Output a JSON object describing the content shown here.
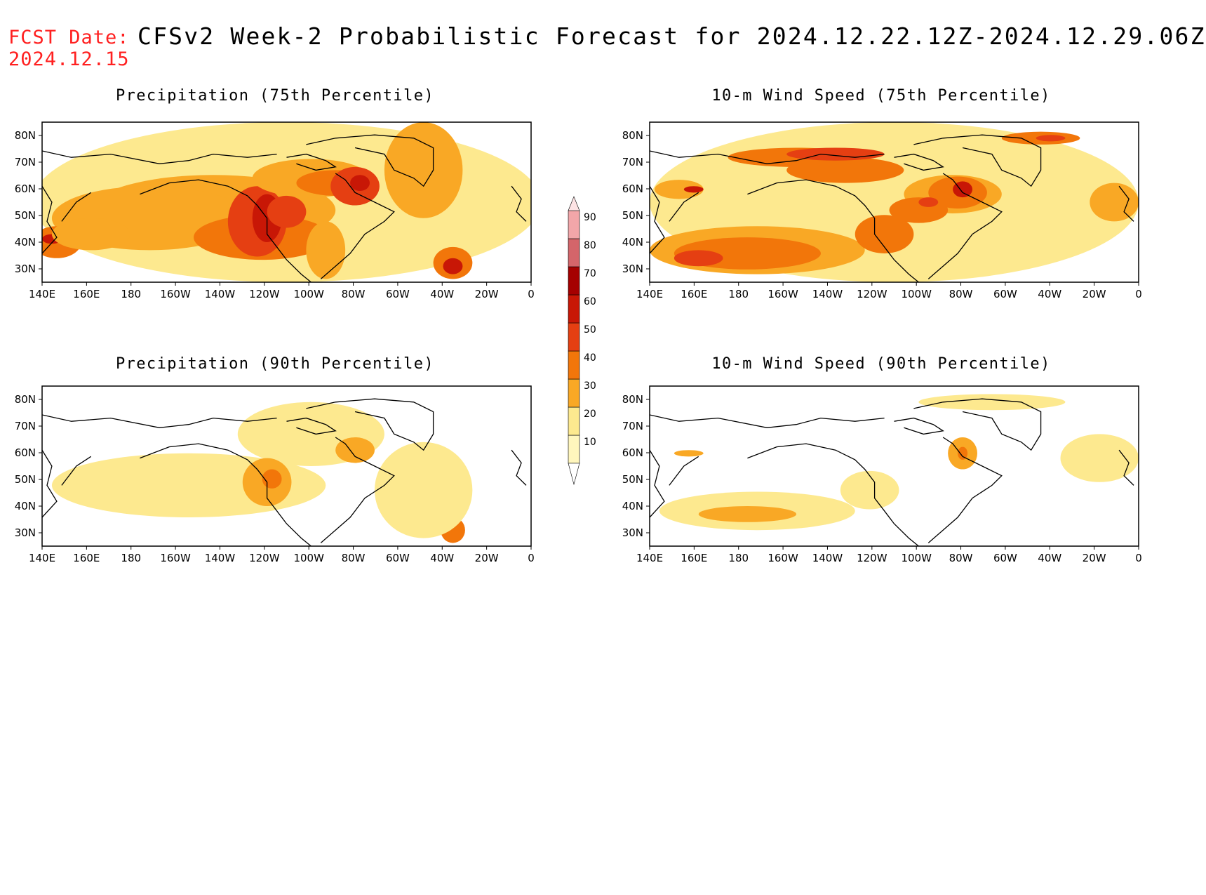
{
  "header": {
    "fcst_label": "FCST Date:",
    "fcst_date": "2024.12.15",
    "title": "CFSv2 Week-2 Probabilistic Forecast for 2024.12.22.12Z-2024.12.29.06Z"
  },
  "axes": {
    "lon_ticks": [
      "140E",
      "160E",
      "180",
      "160W",
      "140W",
      "120W",
      "100W",
      "80W",
      "60W",
      "40W",
      "20W",
      "0"
    ],
    "lat_ticks": [
      "80N",
      "70N",
      "60N",
      "50N",
      "40N",
      "30N"
    ],
    "lat_values": [
      80,
      70,
      60,
      50,
      40,
      30
    ]
  },
  "colors": {
    "levels": [
      "#fff6bd",
      "#fde98f",
      "#f9a825",
      "#f2760a",
      "#e53f12",
      "#c81706",
      "#a50000",
      "#d4656a",
      "#f2a6a9",
      "#fde3e4"
    ],
    "coast": "#000000"
  },
  "colorbar": {
    "labels": [
      "90",
      "80",
      "70",
      "60",
      "50",
      "40",
      "30",
      "20",
      "10"
    ],
    "values": [
      10,
      20,
      30,
      40,
      50,
      60,
      70,
      80,
      90
    ]
  },
  "panels": [
    {
      "id": "precip75",
      "title": "Precipitation (75th Percentile)",
      "intensity": "high"
    },
    {
      "id": "wind75",
      "title": "10-m Wind Speed (75th Percentile)",
      "intensity": "high"
    },
    {
      "id": "precip90",
      "title": "Precipitation (90th Percentile)",
      "intensity": "low"
    },
    {
      "id": "wind90",
      "title": "10-m Wind Speed (90th Percentile)",
      "intensity": "low"
    }
  ]
}
